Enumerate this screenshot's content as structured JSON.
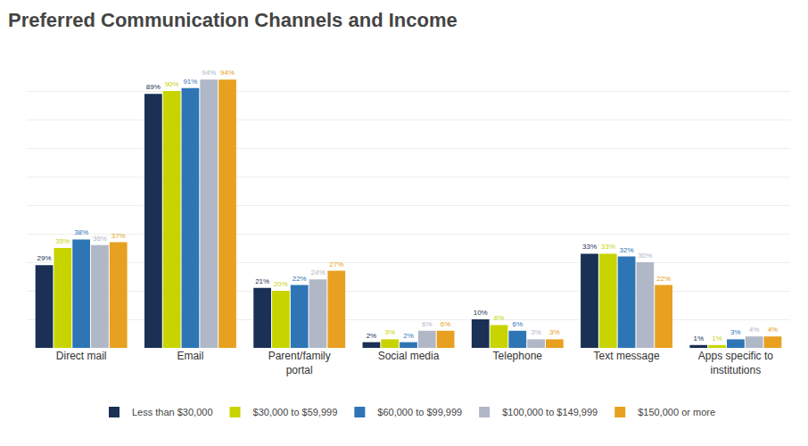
{
  "chart_data": {
    "type": "bar",
    "title": "Preferred Communication Channels and Income",
    "categories": [
      "Direct mail",
      "Email",
      "Parent/family\nportal",
      "Social media",
      "Telephone",
      "Text message",
      "Apps specific to\ninstitutions"
    ],
    "series": [
      {
        "name": "Less than $30,000",
        "color": "#1a3054",
        "values": [
          29,
          89,
          21,
          2,
          10,
          33,
          1
        ],
        "value_labels": [
          "29%",
          "89%",
          "21%",
          "2%",
          "10%",
          "33%",
          "1%"
        ]
      },
      {
        "name": "$30,000 to $59,999",
        "color": "#c8d400",
        "values": [
          35,
          90,
          20,
          3,
          8,
          33,
          1
        ],
        "value_labels": [
          "35%",
          "90%",
          "20%",
          "3%",
          "8%",
          "33%",
          "1%"
        ]
      },
      {
        "name": "$60,000 to $99,999",
        "color": "#2e75b6",
        "values": [
          38,
          91,
          22,
          2,
          6,
          32,
          3
        ],
        "value_labels": [
          "38%",
          "91%",
          "22%",
          "2%",
          "6%",
          "32%",
          "3%"
        ]
      },
      {
        "name": "$100,000 to $149,999",
        "color": "#b0b7c6",
        "values": [
          36,
          94,
          24,
          6,
          3,
          30,
          4
        ],
        "value_labels": [
          "36%",
          "94%",
          "24%",
          "6%",
          "3%",
          "30%",
          "4%"
        ]
      },
      {
        "name": "$150,000 or more",
        "color": "#e8a020",
        "values": [
          37,
          94,
          27,
          6,
          3,
          22,
          4
        ],
        "value_labels": [
          "37%",
          "94%",
          "27%",
          "6%",
          "3%",
          "22%",
          "4%"
        ]
      }
    ],
    "ylim": [
      0,
      100
    ],
    "yticks": [
      0,
      10,
      20,
      30,
      40,
      50,
      60,
      70,
      80,
      90,
      100
    ],
    "grid": true,
    "tick_labels": "x",
    "data_labels": true,
    "legend": "bottom"
  }
}
